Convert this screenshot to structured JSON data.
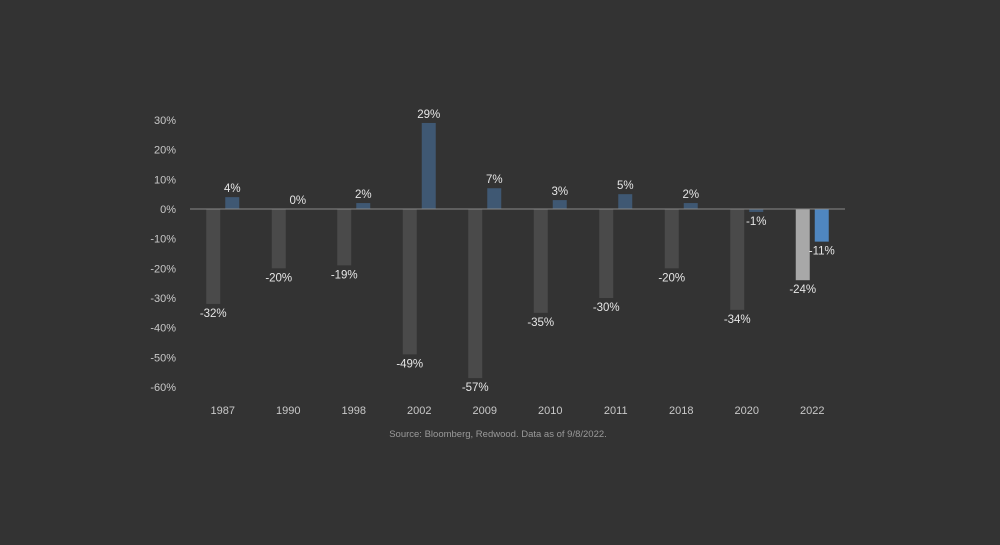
{
  "chart_data": {
    "type": "bar",
    "categories": [
      "1987",
      "1990",
      "1998",
      "2002",
      "2009",
      "2010",
      "2011",
      "2018",
      "2020",
      "2022"
    ],
    "series": [
      {
        "values": [
          -32,
          -20,
          -19,
          -49,
          -57,
          -35,
          -30,
          -20,
          -34,
          -24
        ],
        "labels": [
          "-32%",
          "-20%",
          "-19%",
          "-49%",
          "-57%",
          "-35%",
          "-30%",
          "-20%",
          "-34%",
          "-24%"
        ],
        "colors": [
          "#4a4a4a",
          "#4a4a4a",
          "#4a4a4a",
          "#4a4a4a",
          "#4a4a4a",
          "#4a4a4a",
          "#4a4a4a",
          "#4a4a4a",
          "#4a4a4a",
          "#a8a8a8"
        ]
      },
      {
        "values": [
          4,
          0,
          2,
          29,
          7,
          3,
          5,
          2,
          -1,
          -11
        ],
        "labels": [
          "4%",
          "0%",
          "2%",
          "29%",
          "7%",
          "3%",
          "5%",
          "2%",
          "-1%",
          "-11%"
        ],
        "colors": [
          "#3f5873",
          "#3f5873",
          "#3f5873",
          "#3f5873",
          "#3f5873",
          "#3f5873",
          "#3f5873",
          "#3f5873",
          "#3f5873",
          "#4f86c0"
        ]
      }
    ],
    "yticks": [
      30,
      20,
      10,
      0,
      -10,
      -20,
      -30,
      -40,
      -50,
      -60
    ],
    "ytick_labels": [
      "30%",
      "20%",
      "10%",
      "0%",
      "-10%",
      "-20%",
      "-30%",
      "-40%",
      "-50%",
      "-60%"
    ],
    "ylim": [
      -60,
      30
    ],
    "grid": false,
    "legend": "none",
    "source": "Source: Bloomberg, Redwood. Data as of 9/8/2022."
  },
  "colors": {
    "background": "#333333",
    "zero_line": "#8a8a8a"
  }
}
